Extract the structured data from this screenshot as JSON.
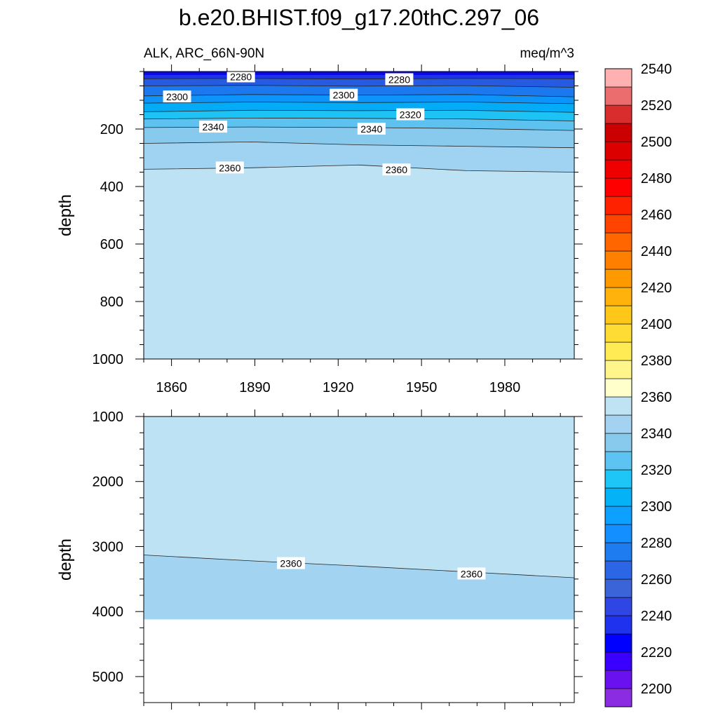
{
  "title": "b.e20.BHIST.f09_g17.20thC.297_06",
  "left_subtitle": "ALK, ARC_66N-90N",
  "right_subtitle": "meq/m^3",
  "chart_data": [
    {
      "type": "heatmap",
      "panel": "upper",
      "xlabel": "",
      "ylabel": "depth",
      "xlim": [
        1850,
        2005
      ],
      "ylim": [
        0,
        1000
      ],
      "y_reversed": true,
      "x_ticks": [
        1860,
        1890,
        1920,
        1950,
        1980
      ],
      "y_ticks": [
        200,
        400,
        600,
        800,
        1000
      ],
      "contour_lines": [
        {
          "level": 2280,
          "depth": [
            25,
            24,
            26,
            24,
            25
          ]
        },
        {
          "level": 2290,
          "depth": [
            50,
            48,
            51,
            49,
            55
          ]
        },
        {
          "level": 2300,
          "depth": [
            85,
            80,
            82,
            80,
            88
          ]
        },
        {
          "level": 2310,
          "depth": [
            110,
            106,
            108,
            106,
            112
          ]
        },
        {
          "level": 2320,
          "depth": [
            140,
            135,
            136,
            135,
            142
          ]
        },
        {
          "level": 2330,
          "depth": [
            165,
            162,
            163,
            165,
            172
          ]
        },
        {
          "level": 2340,
          "depth": [
            195,
            193,
            195,
            198,
            205
          ]
        },
        {
          "level": 2350,
          "depth": [
            250,
            245,
            255,
            260,
            265
          ]
        },
        {
          "level": 2360,
          "depth": [
            340,
            335,
            325,
            345,
            350
          ]
        }
      ],
      "contour_labels": [
        {
          "text": "2280",
          "x": 1885,
          "depth": 18
        },
        {
          "text": "2280",
          "x": 1942,
          "depth": 28
        },
        {
          "text": "2300",
          "x": 1862,
          "depth": 88
        },
        {
          "text": "2300",
          "x": 1922,
          "depth": 82
        },
        {
          "text": "2320",
          "x": 1946,
          "depth": 150
        },
        {
          "text": "2340",
          "x": 1875,
          "depth": 193
        },
        {
          "text": "2340",
          "x": 1932,
          "depth": 200
        },
        {
          "text": "2360",
          "x": 1881,
          "depth": 335
        },
        {
          "text": "2360",
          "x": 1941,
          "depth": 342
        }
      ]
    },
    {
      "type": "heatmap",
      "panel": "lower",
      "xlabel": "",
      "ylabel": "depth",
      "xlim": [
        1850,
        2005
      ],
      "ylim": [
        1000,
        5400
      ],
      "y_reversed": true,
      "x_ticks": [
        1860,
        1890,
        1920,
        1950,
        1980
      ],
      "y_ticks": [
        1000,
        2000,
        3000,
        4000,
        5000
      ],
      "bottom_depth": 4120,
      "contour_lines": [
        {
          "level": 2360,
          "depth": [
            3130,
            3220,
            3300,
            3390,
            3480
          ]
        }
      ],
      "contour_labels": [
        {
          "text": "2360",
          "x": 1903,
          "depth": 3260
        },
        {
          "text": "2360",
          "x": 1968,
          "depth": 3420
        }
      ]
    }
  ],
  "colorbar": {
    "labels": [
      "2200",
      "2220",
      "2240",
      "2260",
      "2280",
      "2300",
      "2320",
      "2340",
      "2360",
      "2380",
      "2400",
      "2420",
      "2440",
      "2460",
      "2480",
      "2500",
      "2520",
      "2540"
    ],
    "colors": [
      "#8b2be2",
      "#6a11f0",
      "#3a00ff",
      "#0000ff",
      "#1f33ee",
      "#2f46e4",
      "#3c64d9",
      "#2b66e6",
      "#1e7cf0",
      "#148fff",
      "#0ca0ff",
      "#04b2f7",
      "#1ec6f7",
      "#5cc3f2",
      "#88c9ee",
      "#a3d3f0",
      "#bfe3f3",
      "#ffffcc",
      "#fff58a",
      "#ffec55",
      "#ffdc34",
      "#ffc818",
      "#ffb20c",
      "#ff9900",
      "#ff8000",
      "#ff6600",
      "#ff4400",
      "#ff2200",
      "#ff0000",
      "#ee0000",
      "#dd0000",
      "#cc0000",
      "#d92d2d",
      "#ec6d6d",
      "#ffb0b0"
    ]
  },
  "fill_levels": {
    "upper_bands": [
      "#0a08e8",
      "#1d34e6",
      "#265ae0",
      "#1c78ee",
      "#0c94fb",
      "#04abf6",
      "#1ec3f6",
      "#5ec2f1",
      "#88c9ee",
      "#a0d2f1",
      "#bce2f3"
    ],
    "lower_bands": [
      "#bce2f3",
      "#a2d4f1"
    ]
  }
}
